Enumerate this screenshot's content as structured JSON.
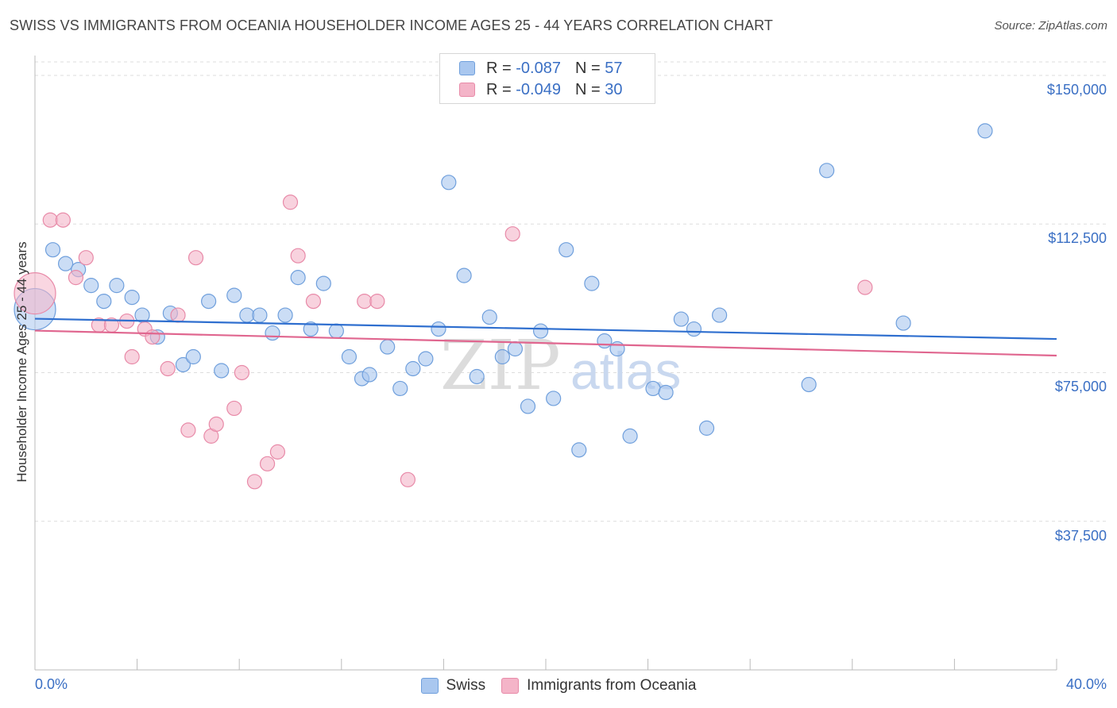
{
  "title": "SWISS VS IMMIGRANTS FROM OCEANIA HOUSEHOLDER INCOME AGES 25 - 44 YEARS CORRELATION CHART",
  "source": "Source: ZipAtlas.com",
  "watermark": {
    "zip": "ZIP",
    "atlas": "atlas"
  },
  "stats": [
    {
      "r_label": "R =",
      "r_value": "-0.087",
      "n_label": "N =",
      "n_value": "57",
      "color": "#a9c7ef"
    },
    {
      "r_label": "R =",
      "r_value": "-0.049",
      "n_label": "N =",
      "n_value": "30",
      "color": "#f4b4c8"
    }
  ],
  "legend": [
    {
      "label": "Swiss",
      "color": "#a9c7ef"
    },
    {
      "label": "Immigrants from Oceania",
      "color": "#f4b4c8"
    }
  ],
  "chart_data": {
    "type": "scatter",
    "title": "SWISS VS IMMIGRANTS FROM OCEANIA HOUSEHOLDER INCOME AGES 25 - 44 YEARS CORRELATION CHART",
    "xlabel": "",
    "ylabel": "Householder Income Ages 25 - 44 years",
    "x_tick_labels": [
      "0.0%",
      "40.0%"
    ],
    "y_tick_labels": [
      "$150,000",
      "$112,500",
      "$75,000",
      "$37,500"
    ],
    "y_ticks": [
      150000,
      112500,
      75000,
      37500
    ],
    "xlim": [
      0,
      40
    ],
    "ylim": [
      0,
      155000
    ],
    "grid": true,
    "legend_position": "bottom",
    "series": [
      {
        "name": "Swiss",
        "color": "#a9c7ef",
        "stroke": "#6f9fdc",
        "trend": {
          "x": [
            0,
            40
          ],
          "y": [
            88600,
            83500
          ],
          "color": "#2f6fcf"
        },
        "points": [
          {
            "x": 0.0,
            "y": 91000,
            "big": true
          },
          {
            "x": 0.7,
            "y": 106000
          },
          {
            "x": 1.2,
            "y": 102500
          },
          {
            "x": 1.7,
            "y": 101000
          },
          {
            "x": 2.2,
            "y": 97000
          },
          {
            "x": 2.7,
            "y": 93000
          },
          {
            "x": 3.2,
            "y": 97000
          },
          {
            "x": 3.8,
            "y": 94000
          },
          {
            "x": 4.2,
            "y": 89500
          },
          {
            "x": 4.8,
            "y": 84000
          },
          {
            "x": 5.3,
            "y": 90000
          },
          {
            "x": 5.8,
            "y": 77000
          },
          {
            "x": 6.2,
            "y": 79000
          },
          {
            "x": 6.8,
            "y": 93000
          },
          {
            "x": 7.3,
            "y": 75500
          },
          {
            "x": 7.8,
            "y": 94500
          },
          {
            "x": 8.3,
            "y": 89500
          },
          {
            "x": 8.8,
            "y": 89500
          },
          {
            "x": 9.3,
            "y": 85000
          },
          {
            "x": 9.8,
            "y": 89500
          },
          {
            "x": 10.3,
            "y": 99000
          },
          {
            "x": 10.8,
            "y": 86000
          },
          {
            "x": 11.3,
            "y": 97500
          },
          {
            "x": 11.8,
            "y": 85500
          },
          {
            "x": 12.3,
            "y": 79000
          },
          {
            "x": 12.8,
            "y": 73500
          },
          {
            "x": 13.1,
            "y": 74500
          },
          {
            "x": 13.8,
            "y": 81500
          },
          {
            "x": 14.3,
            "y": 71000
          },
          {
            "x": 14.8,
            "y": 76000
          },
          {
            "x": 15.3,
            "y": 78500
          },
          {
            "x": 15.8,
            "y": 86000
          },
          {
            "x": 16.2,
            "y": 123000
          },
          {
            "x": 16.8,
            "y": 99500
          },
          {
            "x": 17.3,
            "y": 74000
          },
          {
            "x": 17.8,
            "y": 89000
          },
          {
            "x": 18.3,
            "y": 79000
          },
          {
            "x": 18.8,
            "y": 81000
          },
          {
            "x": 19.3,
            "y": 66500
          },
          {
            "x": 19.8,
            "y": 85500
          },
          {
            "x": 20.3,
            "y": 68500
          },
          {
            "x": 20.8,
            "y": 106000
          },
          {
            "x": 21.3,
            "y": 55500
          },
          {
            "x": 21.8,
            "y": 97500
          },
          {
            "x": 22.3,
            "y": 83000
          },
          {
            "x": 22.8,
            "y": 81000
          },
          {
            "x": 23.3,
            "y": 59000
          },
          {
            "x": 24.2,
            "y": 71000
          },
          {
            "x": 24.7,
            "y": 70000
          },
          {
            "x": 25.3,
            "y": 88500
          },
          {
            "x": 25.8,
            "y": 86000
          },
          {
            "x": 26.3,
            "y": 61000
          },
          {
            "x": 26.8,
            "y": 89500
          },
          {
            "x": 30.3,
            "y": 72000
          },
          {
            "x": 31.0,
            "y": 126000
          },
          {
            "x": 34.0,
            "y": 87500
          },
          {
            "x": 37.2,
            "y": 136000
          }
        ]
      },
      {
        "name": "Immigrants from Oceania",
        "color": "#f4b4c8",
        "stroke": "#e88aa8",
        "trend": {
          "x": [
            0,
            40
          ],
          "y": [
            85600,
            79300
          ],
          "color": "#e0668f"
        },
        "points": [
          {
            "x": 0.0,
            "y": 95000,
            "big": true
          },
          {
            "x": 0.6,
            "y": 113500
          },
          {
            "x": 1.1,
            "y": 113500
          },
          {
            "x": 1.6,
            "y": 99000
          },
          {
            "x": 2.0,
            "y": 104000
          },
          {
            "x": 2.5,
            "y": 87000
          },
          {
            "x": 3.0,
            "y": 87000
          },
          {
            "x": 3.6,
            "y": 88000
          },
          {
            "x": 3.8,
            "y": 79000
          },
          {
            "x": 4.3,
            "y": 86000
          },
          {
            "x": 4.6,
            "y": 84000
          },
          {
            "x": 5.2,
            "y": 76000
          },
          {
            "x": 5.6,
            "y": 89500
          },
          {
            "x": 6.0,
            "y": 60500
          },
          {
            "x": 6.3,
            "y": 104000
          },
          {
            "x": 6.9,
            "y": 59000
          },
          {
            "x": 7.1,
            "y": 62000
          },
          {
            "x": 7.8,
            "y": 66000
          },
          {
            "x": 8.1,
            "y": 75000
          },
          {
            "x": 8.6,
            "y": 47500
          },
          {
            "x": 9.1,
            "y": 52000
          },
          {
            "x": 9.5,
            "y": 55000
          },
          {
            "x": 10.0,
            "y": 118000
          },
          {
            "x": 10.3,
            "y": 104500
          },
          {
            "x": 10.9,
            "y": 93000
          },
          {
            "x": 12.9,
            "y": 93000
          },
          {
            "x": 13.4,
            "y": 93000
          },
          {
            "x": 14.6,
            "y": 48000
          },
          {
            "x": 18.7,
            "y": 110000
          },
          {
            "x": 32.5,
            "y": 96500
          }
        ]
      }
    ]
  }
}
